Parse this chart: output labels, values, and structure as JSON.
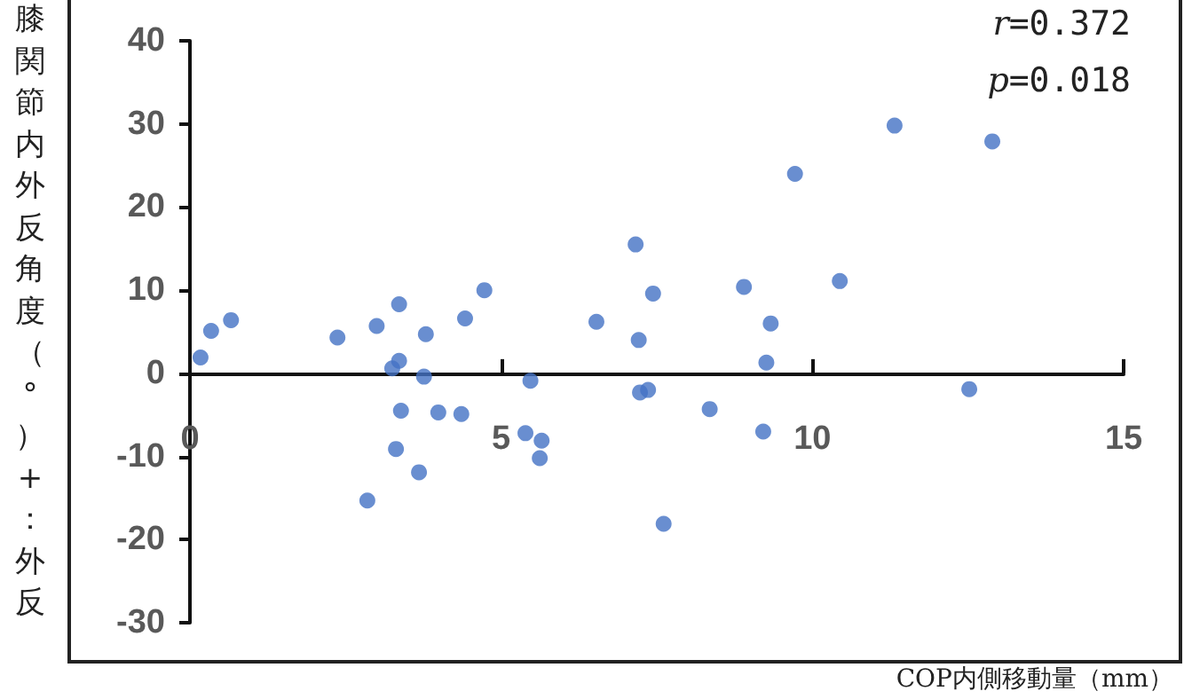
{
  "chart_data": {
    "type": "scatter",
    "xlabel": "COP内側移動量（mm）",
    "ylabel": "膝関節内外反角度（°）+：外反",
    "annotations": [
      "r=0.372",
      "p=0.018"
    ],
    "series": [
      {
        "color": "#4472c4",
        "x": [
          0.17,
          0.34,
          0.66,
          2.37,
          3.0,
          3.36,
          3.25,
          3.36,
          3.79,
          3.76,
          3.39,
          3.99,
          4.36,
          4.42,
          4.73,
          3.31,
          3.68,
          2.85,
          5.47,
          5.39,
          5.65,
          5.62,
          6.53,
          7.16,
          7.21,
          7.23,
          7.36,
          7.44,
          7.61,
          8.35,
          8.9,
          9.26,
          9.33,
          9.21,
          9.72,
          10.44,
          11.32,
          12.52,
          12.89
        ],
        "values": [
          1.9,
          5.1,
          6.4,
          4.3,
          5.7,
          8.3,
          0.6,
          1.5,
          4.7,
          -0.4,
          -4.5,
          -4.7,
          -4.9,
          6.6,
          10.0,
          -9.1,
          -11.9,
          -15.3,
          -0.9,
          -7.2,
          -8.1,
          -10.2,
          6.2,
          15.5,
          4.0,
          -2.3,
          -2.0,
          9.6,
          -18.1,
          -4.3,
          10.4,
          1.3,
          6.0,
          -7.0,
          24.0,
          11.1,
          29.8,
          -1.9,
          27.9
        ]
      }
    ],
    "xlim": [
      0,
      15
    ],
    "xticks": [
      0,
      5,
      10,
      15
    ],
    "ylim": [
      -30,
      40
    ],
    "yticks": [
      -30,
      -20,
      -10,
      0,
      10,
      20,
      30,
      40
    ],
    "grid": false,
    "marker": "circle"
  }
}
